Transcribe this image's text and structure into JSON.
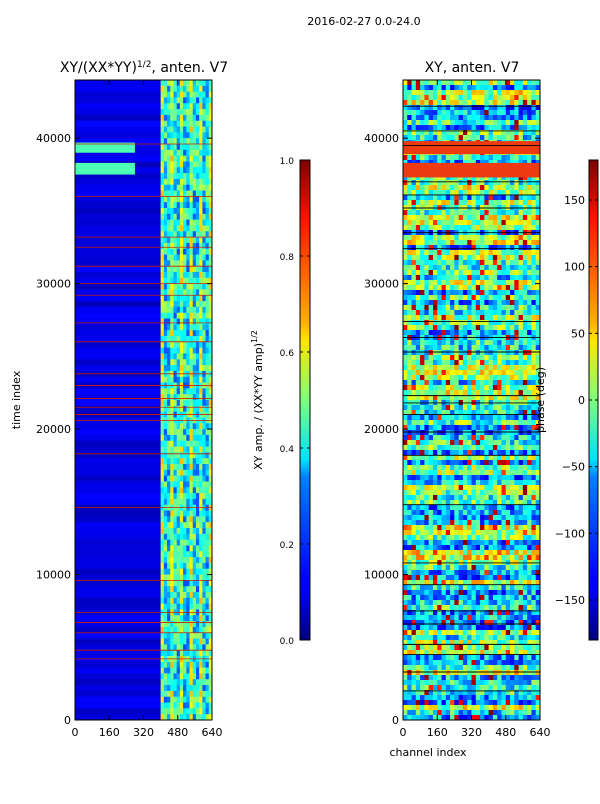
{
  "figure": {
    "suptitle": "2016-02-27 0.0-24.0"
  },
  "chart_data": [
    {
      "type": "heatmap",
      "title": "XY/(XX*YY)$^{1/2}$, anten. V7",
      "title_parts": {
        "main": "XY/(XX*YY)",
        "sup": "1/2",
        "tail": ", anten. V7"
      },
      "xlabel": "",
      "ylabel": "time index",
      "xlim": [
        0,
        640
      ],
      "ylim": [
        0,
        44000
      ],
      "xticks": [
        0,
        160,
        320,
        480,
        640
      ],
      "yticks": [
        0,
        10000,
        20000,
        30000,
        40000
      ],
      "colormap": "jet",
      "colorbar": {
        "label": "XY amp. / (XX*YY amp)$^{1/2}$",
        "label_parts": {
          "main": "XY amp. / (XX*YY amp)",
          "sup": "1/2"
        },
        "range": [
          0.0,
          1.0
        ],
        "ticks": [
          0.0,
          0.2,
          0.4,
          0.6,
          0.8,
          1.0
        ],
        "tick_labels": [
          "0.0",
          "0.2",
          "0.4",
          "0.6",
          "0.8",
          "1.0"
        ]
      }
    },
    {
      "type": "heatmap",
      "title": "XY, anten. V7",
      "xlabel": "channel index",
      "ylabel": "",
      "xlim": [
        0,
        640
      ],
      "ylim": [
        0,
        44000
      ],
      "xticks": [
        0,
        160,
        320,
        480,
        640
      ],
      "yticks": [
        0,
        10000,
        20000,
        30000,
        40000
      ],
      "colormap": "jet",
      "colorbar": {
        "label": "phase (deg)",
        "range": [
          -180,
          180
        ],
        "ticks": [
          -150,
          -100,
          -50,
          0,
          50,
          100,
          150
        ],
        "tick_labels": [
          "−150",
          "−100",
          "−50",
          "0",
          "50",
          "100",
          "150"
        ]
      }
    }
  ]
}
